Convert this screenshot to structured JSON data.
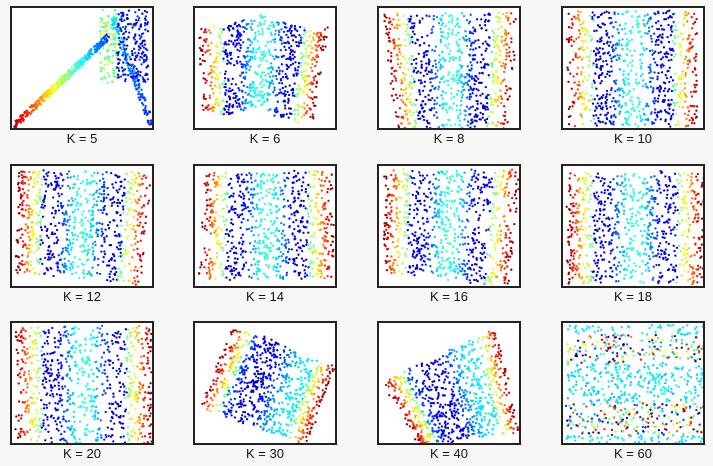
{
  "figure": {
    "panels": [
      {
        "id": "k5",
        "label": "K = 5",
        "K": 5,
        "shape": "triangle"
      },
      {
        "id": "k6",
        "label": "K = 6",
        "K": 6,
        "shape": "wave-quad"
      },
      {
        "id": "k8",
        "label": "K = 8",
        "K": 8,
        "shape": "quad"
      },
      {
        "id": "k10",
        "label": "K = 10",
        "K": 10,
        "shape": "quad"
      },
      {
        "id": "k12",
        "label": "K = 12",
        "K": 12,
        "shape": "quad"
      },
      {
        "id": "k14",
        "label": "K = 14",
        "K": 14,
        "shape": "quad"
      },
      {
        "id": "k16",
        "label": "K = 16",
        "K": 16,
        "shape": "quad"
      },
      {
        "id": "k18",
        "label": "K = 18",
        "K": 18,
        "shape": "quad"
      },
      {
        "id": "k20",
        "label": "K = 20",
        "K": 20,
        "shape": "quad"
      },
      {
        "id": "k30",
        "label": "K = 30",
        "K": 30,
        "shape": "rotated-quad"
      },
      {
        "id": "k40",
        "label": "K = 40",
        "K": 40,
        "shape": "rotated-quad"
      },
      {
        "id": "k60",
        "label": "K = 60",
        "K": 60,
        "shape": "noisy"
      }
    ]
  },
  "chart_data": {
    "type": "scatter",
    "title": "",
    "subplot_titles": [
      "K = 5",
      "K = 6",
      "K = 8",
      "K = 10",
      "K = 12",
      "K = 14",
      "K = 16",
      "K = 18",
      "K = 20",
      "K = 30",
      "K = 40",
      "K = 60"
    ],
    "axes": "none",
    "grid": false,
    "colormap": "jet",
    "colormap_colors": [
      "#00008f",
      "#0000ff",
      "#0080ff",
      "#00ffff",
      "#80ff80",
      "#ffff00",
      "#ff8000",
      "#ff0000",
      "#800000"
    ]
  }
}
